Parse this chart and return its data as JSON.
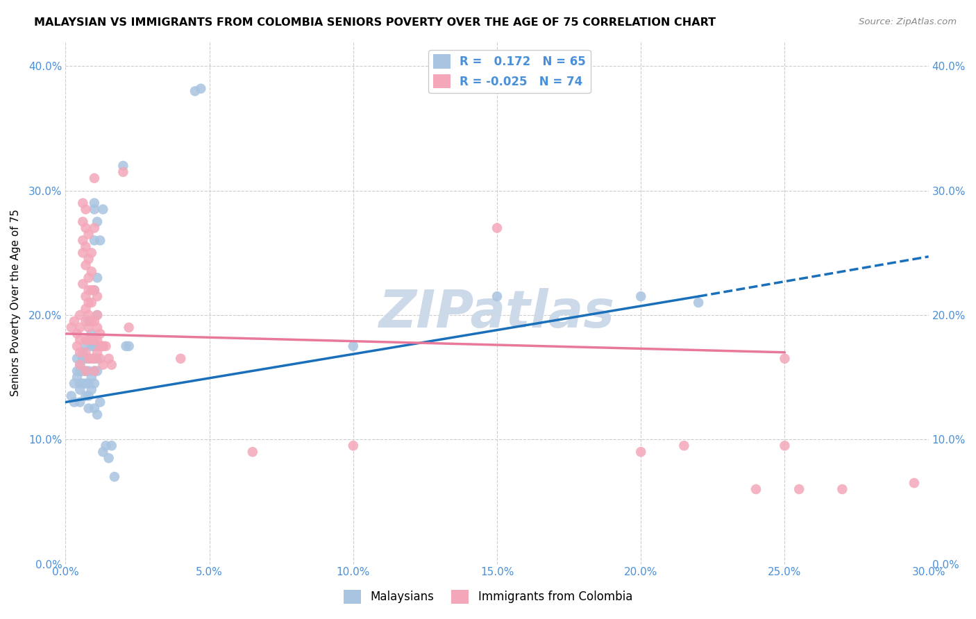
{
  "title": "MALAYSIAN VS IMMIGRANTS FROM COLOMBIA SENIORS POVERTY OVER THE AGE OF 75 CORRELATION CHART",
  "source": "Source: ZipAtlas.com",
  "ylabel": "Seniors Poverty Over the Age of 75",
  "xmin": 0.0,
  "xmax": 0.3,
  "ymin": 0.0,
  "ymax": 0.42,
  "legend_label1": "Malaysians",
  "legend_label2": "Immigrants from Colombia",
  "R1": 0.172,
  "N1": 65,
  "R2": -0.025,
  "N2": 74,
  "color_blue": "#a8c4e0",
  "color_pink": "#f4a7b9",
  "color_blue_line": "#1a6fba",
  "color_pink_line": "#e8799a",
  "color_watermark": "#ccd9e8",
  "background_color": "#ffffff",
  "grid_color": "#cccccc",
  "blue_line_x0": 0.0,
  "blue_line_y0": 0.13,
  "blue_line_x1": 0.22,
  "blue_line_y1": 0.215,
  "blue_line_dash_x1": 0.3,
  "blue_line_dash_y1": 0.247,
  "pink_line_x0": 0.0,
  "pink_line_y0": 0.185,
  "pink_line_x1": 0.25,
  "pink_line_y1": 0.17,
  "scatter_blue": [
    [
      0.002,
      0.135
    ],
    [
      0.003,
      0.13
    ],
    [
      0.003,
      0.145
    ],
    [
      0.004,
      0.155
    ],
    [
      0.004,
      0.165
    ],
    [
      0.004,
      0.15
    ],
    [
      0.005,
      0.16
    ],
    [
      0.005,
      0.155
    ],
    [
      0.005,
      0.145
    ],
    [
      0.005,
      0.14
    ],
    [
      0.005,
      0.13
    ],
    [
      0.006,
      0.17
    ],
    [
      0.006,
      0.165
    ],
    [
      0.006,
      0.155
    ],
    [
      0.006,
      0.145
    ],
    [
      0.007,
      0.175
    ],
    [
      0.007,
      0.165
    ],
    [
      0.007,
      0.155
    ],
    [
      0.007,
      0.145
    ],
    [
      0.007,
      0.135
    ],
    [
      0.008,
      0.195
    ],
    [
      0.008,
      0.165
    ],
    [
      0.008,
      0.155
    ],
    [
      0.008,
      0.145
    ],
    [
      0.008,
      0.135
    ],
    [
      0.008,
      0.125
    ],
    [
      0.009,
      0.185
    ],
    [
      0.009,
      0.175
    ],
    [
      0.009,
      0.15
    ],
    [
      0.009,
      0.14
    ],
    [
      0.01,
      0.29
    ],
    [
      0.01,
      0.285
    ],
    [
      0.01,
      0.26
    ],
    [
      0.01,
      0.22
    ],
    [
      0.01,
      0.175
    ],
    [
      0.01,
      0.165
    ],
    [
      0.01,
      0.155
    ],
    [
      0.01,
      0.145
    ],
    [
      0.01,
      0.125
    ],
    [
      0.011,
      0.275
    ],
    [
      0.011,
      0.23
    ],
    [
      0.011,
      0.2
    ],
    [
      0.011,
      0.175
    ],
    [
      0.011,
      0.165
    ],
    [
      0.011,
      0.155
    ],
    [
      0.011,
      0.12
    ],
    [
      0.012,
      0.26
    ],
    [
      0.012,
      0.175
    ],
    [
      0.012,
      0.13
    ],
    [
      0.013,
      0.285
    ],
    [
      0.013,
      0.175
    ],
    [
      0.013,
      0.09
    ],
    [
      0.014,
      0.095
    ],
    [
      0.015,
      0.085
    ],
    [
      0.016,
      0.095
    ],
    [
      0.017,
      0.07
    ],
    [
      0.02,
      0.32
    ],
    [
      0.021,
      0.175
    ],
    [
      0.022,
      0.175
    ],
    [
      0.045,
      0.38
    ],
    [
      0.047,
      0.382
    ],
    [
      0.1,
      0.175
    ],
    [
      0.15,
      0.215
    ],
    [
      0.2,
      0.215
    ],
    [
      0.22,
      0.21
    ]
  ],
  "scatter_pink": [
    [
      0.002,
      0.19
    ],
    [
      0.003,
      0.195
    ],
    [
      0.004,
      0.185
    ],
    [
      0.004,
      0.175
    ],
    [
      0.005,
      0.2
    ],
    [
      0.005,
      0.19
    ],
    [
      0.005,
      0.18
    ],
    [
      0.005,
      0.17
    ],
    [
      0.005,
      0.16
    ],
    [
      0.006,
      0.29
    ],
    [
      0.006,
      0.275
    ],
    [
      0.006,
      0.26
    ],
    [
      0.006,
      0.25
    ],
    [
      0.006,
      0.225
    ],
    [
      0.007,
      0.285
    ],
    [
      0.007,
      0.27
    ],
    [
      0.007,
      0.255
    ],
    [
      0.007,
      0.24
    ],
    [
      0.007,
      0.215
    ],
    [
      0.007,
      0.205
    ],
    [
      0.007,
      0.195
    ],
    [
      0.007,
      0.18
    ],
    [
      0.007,
      0.17
    ],
    [
      0.007,
      0.155
    ],
    [
      0.008,
      0.265
    ],
    [
      0.008,
      0.245
    ],
    [
      0.008,
      0.23
    ],
    [
      0.008,
      0.22
    ],
    [
      0.008,
      0.21
    ],
    [
      0.008,
      0.2
    ],
    [
      0.008,
      0.19
    ],
    [
      0.008,
      0.18
    ],
    [
      0.008,
      0.165
    ],
    [
      0.009,
      0.25
    ],
    [
      0.009,
      0.235
    ],
    [
      0.009,
      0.22
    ],
    [
      0.009,
      0.21
    ],
    [
      0.009,
      0.195
    ],
    [
      0.009,
      0.18
    ],
    [
      0.009,
      0.165
    ],
    [
      0.01,
      0.31
    ],
    [
      0.01,
      0.27
    ],
    [
      0.01,
      0.22
    ],
    [
      0.01,
      0.195
    ],
    [
      0.01,
      0.18
    ],
    [
      0.01,
      0.165
    ],
    [
      0.01,
      0.155
    ],
    [
      0.011,
      0.215
    ],
    [
      0.011,
      0.2
    ],
    [
      0.011,
      0.19
    ],
    [
      0.011,
      0.18
    ],
    [
      0.011,
      0.17
    ],
    [
      0.012,
      0.185
    ],
    [
      0.012,
      0.175
    ],
    [
      0.012,
      0.165
    ],
    [
      0.013,
      0.175
    ],
    [
      0.013,
      0.16
    ],
    [
      0.014,
      0.175
    ],
    [
      0.015,
      0.165
    ],
    [
      0.016,
      0.16
    ],
    [
      0.02,
      0.315
    ],
    [
      0.022,
      0.19
    ],
    [
      0.04,
      0.165
    ],
    [
      0.065,
      0.09
    ],
    [
      0.1,
      0.095
    ],
    [
      0.15,
      0.27
    ],
    [
      0.2,
      0.09
    ],
    [
      0.215,
      0.095
    ],
    [
      0.24,
      0.06
    ],
    [
      0.25,
      0.165
    ],
    [
      0.25,
      0.095
    ],
    [
      0.255,
      0.06
    ],
    [
      0.27,
      0.06
    ],
    [
      0.295,
      0.065
    ]
  ]
}
